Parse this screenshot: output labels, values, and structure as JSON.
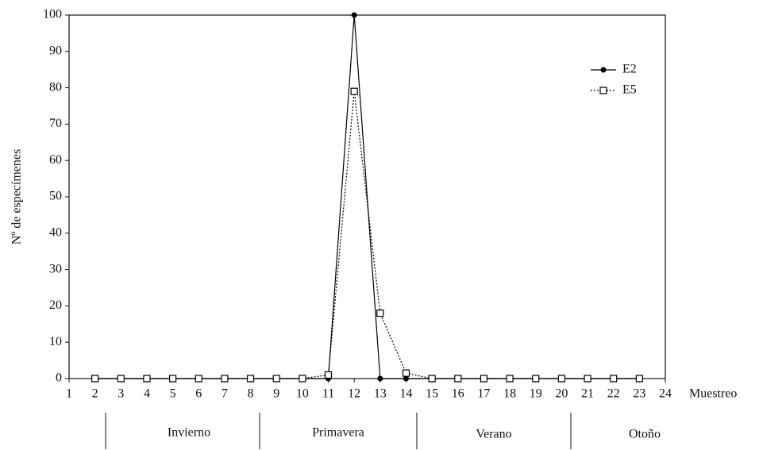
{
  "chart_data": {
    "type": "line",
    "y_label": "Nº de especímenes",
    "x_label": "Muestreo",
    "x": [
      2,
      3,
      4,
      5,
      6,
      7,
      8,
      9,
      10,
      11,
      12,
      13,
      14,
      15,
      16,
      17,
      18,
      19,
      20,
      21,
      22,
      23
    ],
    "series": [
      {
        "name": "E2",
        "color": "#000000",
        "linestyle": "solid",
        "marker": "circle",
        "values": [
          0,
          0,
          0,
          0,
          0,
          0,
          0,
          0,
          0,
          0,
          100,
          0,
          0,
          0,
          0,
          0,
          0,
          0,
          0,
          0,
          0,
          0
        ]
      },
      {
        "name": "E5",
        "color": "#000000",
        "linestyle": "dotted",
        "marker": "square",
        "values": [
          0,
          0,
          0,
          0,
          0,
          0,
          0,
          0,
          0,
          1,
          79,
          18,
          1.5,
          0,
          0,
          0,
          0,
          0,
          0,
          0,
          0,
          0
        ]
      }
    ],
    "xlim": [
      1,
      24
    ],
    "xticks": [
      1,
      2,
      3,
      4,
      5,
      6,
      7,
      8,
      9,
      10,
      11,
      12,
      13,
      14,
      15,
      16,
      17,
      18,
      19,
      20,
      21,
      22,
      23,
      24
    ],
    "ylim": [
      0,
      100
    ],
    "yticks": [
      0,
      10,
      20,
      30,
      40,
      50,
      60,
      70,
      80,
      90,
      100
    ],
    "seasons": [
      "Invierno",
      "Primavera",
      "Verano",
      "Otoño"
    ]
  }
}
